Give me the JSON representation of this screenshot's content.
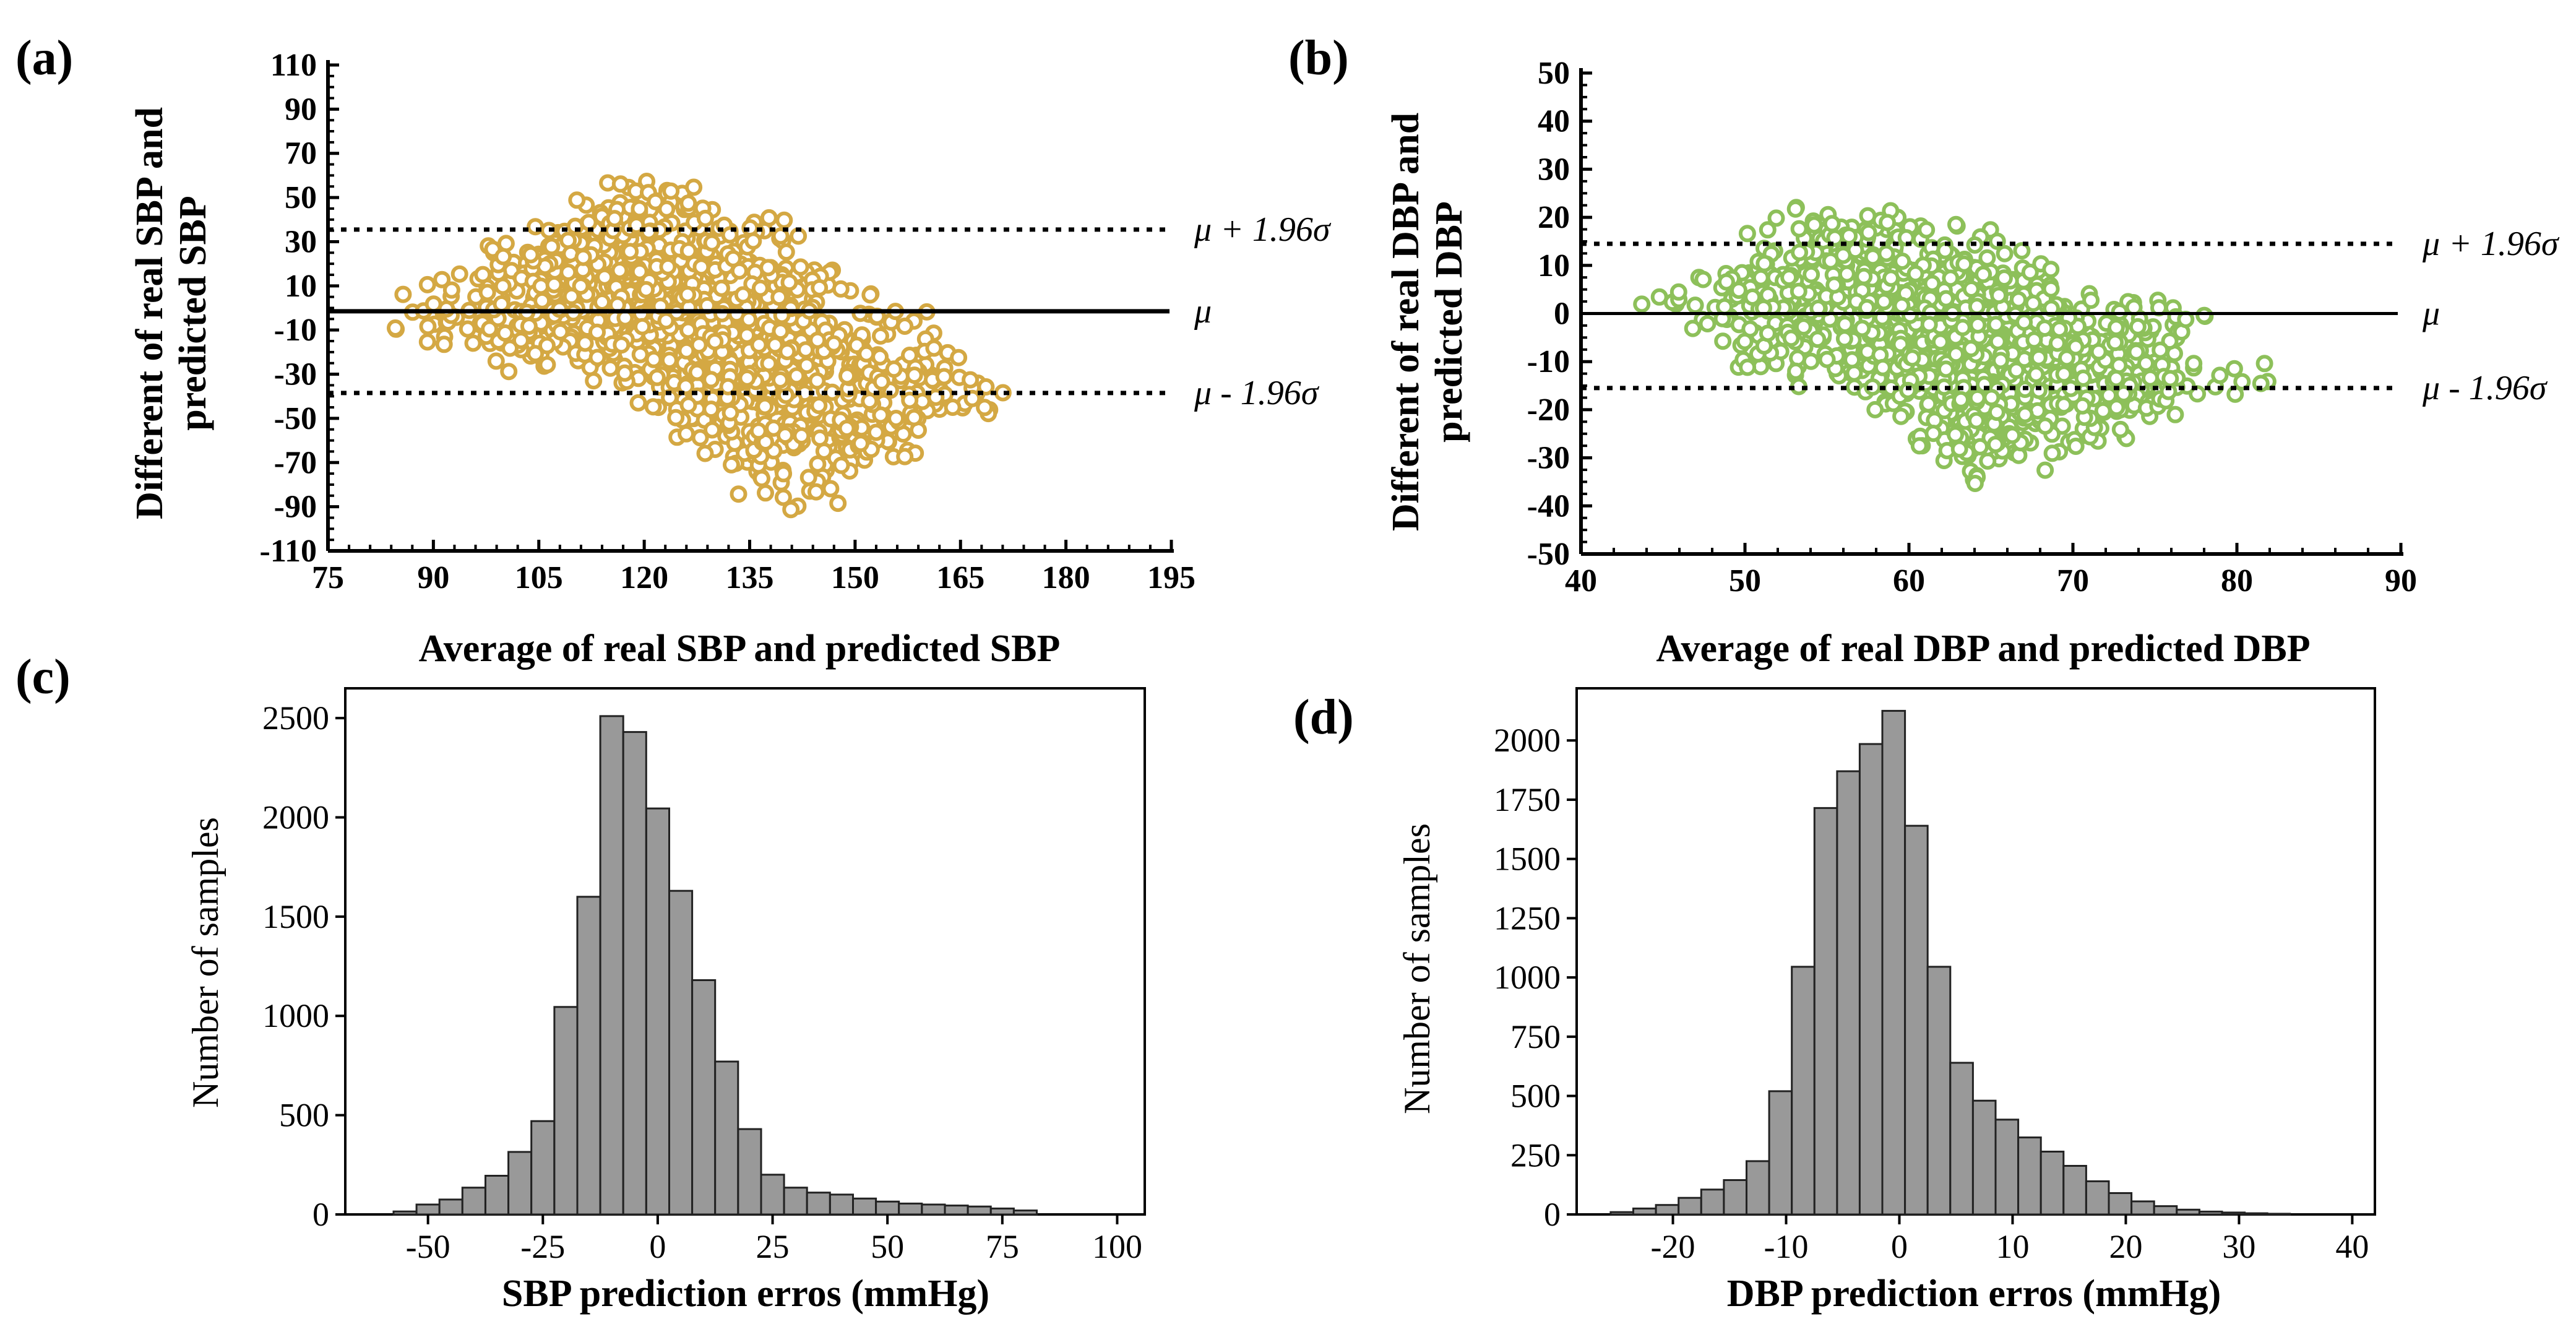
{
  "panel_labels": {
    "a": "(a)",
    "b": "(b)",
    "c": "(c)",
    "d": "(d)"
  },
  "colors": {
    "sbp_points": "#D4A843",
    "dbp_points": "#8DC05A",
    "bars": "#999999",
    "bar_edge": "#222222"
  },
  "chart_data": [
    {
      "id": "a",
      "type": "scatter",
      "title": "",
      "xlabel": "Average of real SBP and predicted SBP",
      "ylabel_lines": [
        "Different of real  SBP and",
        "predicted SBP"
      ],
      "xlim": [
        75,
        195
      ],
      "ylim": [
        -110,
        110
      ],
      "xticks": [
        "75",
        "90",
        "105",
        "120",
        "135",
        "150",
        "165",
        "180",
        "195"
      ],
      "yticks": [
        "110",
        "90",
        "70",
        "50",
        "30",
        "10",
        "-10",
        "-30",
        "-50",
        "-70",
        "-90",
        "-110"
      ],
      "mean": -1.5,
      "upper_loa": 35.5,
      "lower_loa": -38.5,
      "annotations": {
        "upper": "μ + 1.96σ",
        "mean": "μ",
        "lower": "μ - 1.96σ"
      },
      "cloud": {
        "x_range": [
          78,
          177
        ],
        "approx_points": 1300,
        "upper_boundary": [
          [
            78,
            2
          ],
          [
            85,
            12
          ],
          [
            95,
            28
          ],
          [
            105,
            42
          ],
          [
            112,
            57
          ],
          [
            120,
            62
          ],
          [
            128,
            58
          ],
          [
            135,
            55
          ],
          [
            140,
            45
          ],
          [
            145,
            32
          ],
          [
            152,
            20
          ],
          [
            160,
            6
          ],
          [
            165,
            -18
          ],
          [
            172,
            -28
          ],
          [
            177,
            -42
          ]
        ],
        "lower_boundary": [
          [
            78,
            -6
          ],
          [
            85,
            -18
          ],
          [
            95,
            -26
          ],
          [
            105,
            -38
          ],
          [
            115,
            -38
          ],
          [
            125,
            -60
          ],
          [
            132,
            -88
          ],
          [
            140,
            -98
          ],
          [
            148,
            -92
          ],
          [
            155,
            -80
          ],
          [
            160,
            -70
          ],
          [
            165,
            -55
          ],
          [
            172,
            -48
          ],
          [
            177,
            -46
          ]
        ]
      }
    },
    {
      "id": "b",
      "type": "scatter",
      "title": "",
      "xlabel": "Average of real DBP and predicted DBP",
      "ylabel_lines": [
        "Different of real  DBP and",
        "predicted DBP"
      ],
      "xlim": [
        40,
        90
      ],
      "ylim": [
        -50,
        50
      ],
      "xticks": [
        "40",
        "50",
        "60",
        "70",
        "80",
        "90"
      ],
      "yticks": [
        "50",
        "40",
        "30",
        "20",
        "10",
        "0",
        "-10",
        "-20",
        "-30",
        "-40",
        "-50"
      ],
      "mean": 0,
      "upper_loa": 14.5,
      "lower_loa": -15.5,
      "annotations": {
        "upper": "μ + 1.96σ",
        "mean": "μ",
        "lower": "μ - 1.96σ"
      },
      "cloud": {
        "x_range": [
          42,
          84
        ],
        "approx_points": 1300,
        "upper_boundary": [
          [
            42,
            3
          ],
          [
            45,
            8
          ],
          [
            48,
            14
          ],
          [
            50,
            18
          ],
          [
            53,
            25
          ],
          [
            56,
            24
          ],
          [
            60,
            25
          ],
          [
            63,
            20
          ],
          [
            66,
            18
          ],
          [
            70,
            8
          ],
          [
            74,
            4
          ],
          [
            78,
            2
          ],
          [
            81,
            -5
          ],
          [
            84,
            -12
          ]
        ],
        "lower_boundary": [
          [
            42,
            0
          ],
          [
            45,
            -4
          ],
          [
            48,
            -10
          ],
          [
            50,
            -14
          ],
          [
            55,
            -18
          ],
          [
            58,
            -22
          ],
          [
            61,
            -30
          ],
          [
            64,
            -38
          ],
          [
            68,
            -34
          ],
          [
            72,
            -28
          ],
          [
            76,
            -25
          ],
          [
            80,
            -22
          ],
          [
            82,
            -20
          ],
          [
            84,
            -17
          ]
        ]
      }
    },
    {
      "id": "c",
      "type": "bar",
      "title": "",
      "xlabel": "SBP prediction erros (mmHg)",
      "ylabel": "Number of samples",
      "xlim": [
        -68,
        106
      ],
      "ylim": [
        0,
        2650
      ],
      "bin_start": -57.5,
      "bin_width": 5,
      "xticks": [
        -50,
        -25,
        0,
        25,
        50,
        75,
        100
      ],
      "xtick_labels": [
        "-50",
        "-25",
        "0",
        "25",
        "50",
        "75",
        "100"
      ],
      "yticks": [
        0,
        500,
        1000,
        1500,
        2000,
        2500
      ],
      "ytick_labels": [
        "0",
        "500",
        "1000",
        "1500",
        "2000",
        "2500"
      ],
      "values": [
        15,
        50,
        75,
        135,
        195,
        315,
        470,
        1045,
        1600,
        2510,
        2430,
        2045,
        1630,
        1180,
        770,
        430,
        200,
        135,
        110,
        100,
        80,
        65,
        55,
        50,
        45,
        40,
        30,
        20
      ]
    },
    {
      "id": "d",
      "type": "bar",
      "title": "",
      "xlabel": "DBP prediction erros (mmHg)",
      "ylabel": "Number of samples",
      "xlim": [
        -28.5,
        42
      ],
      "ylim": [
        0,
        2220
      ],
      "bin_start": -25.5,
      "bin_width": 2,
      "xticks": [
        -20,
        -10,
        0,
        10,
        20,
        30,
        40
      ],
      "xtick_labels": [
        "-20",
        "-10",
        "0",
        "10",
        "20",
        "30",
        "40"
      ],
      "yticks": [
        0,
        250,
        500,
        750,
        1000,
        1250,
        1500,
        1750,
        2000
      ],
      "ytick_labels": [
        "0",
        "250",
        "500",
        "750",
        "1000",
        "1250",
        "1500",
        "1750",
        "2000"
      ],
      "values": [
        10,
        25,
        40,
        70,
        105,
        145,
        225,
        520,
        1045,
        1715,
        1870,
        1985,
        2125,
        1640,
        1045,
        640,
        480,
        400,
        325,
        265,
        205,
        140,
        90,
        55,
        35,
        20,
        12,
        8,
        5,
        3
      ]
    }
  ]
}
